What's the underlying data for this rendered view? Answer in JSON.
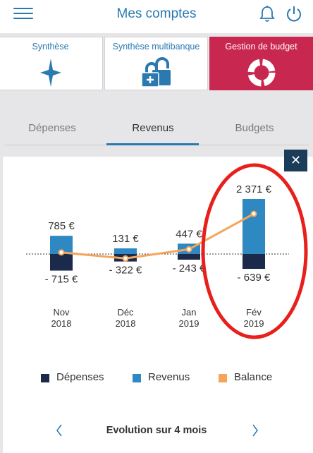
{
  "header": {
    "title": "Mes comptes",
    "menu_icon": "hamburger-menu-icon",
    "bell_icon": "bell-icon",
    "power_icon": "power-icon"
  },
  "tiles": [
    {
      "label": "Synthèse",
      "icon": "star-icon"
    },
    {
      "label": "Synthèse multibanque",
      "icon": "lock-plus-icon"
    },
    {
      "label": "Gestion de budget",
      "icon": "budget-wheel-icon"
    }
  ],
  "tabs": [
    {
      "label": "Dépenses"
    },
    {
      "label": "Revenus"
    },
    {
      "label": "Budgets"
    }
  ],
  "colors": {
    "accent": "#2a7ab0",
    "active_tile": "#c8284f",
    "depenses": "#1b2a4a",
    "revenus": "#2e88c2",
    "balance": "#f5a55a",
    "highlight": "#e8201c"
  },
  "chart_data": {
    "type": "bar",
    "categories": [
      {
        "month": "Nov",
        "year": "2018"
      },
      {
        "month": "Déc",
        "year": "2018"
      },
      {
        "month": "Jan",
        "year": "2019"
      },
      {
        "month": "Fév",
        "year": "2019"
      }
    ],
    "series": [
      {
        "name": "Dépenses",
        "values": [
          -715,
          -322,
          -243,
          -639
        ],
        "labels": [
          "- 715 €",
          "- 322 €",
          "- 243 €",
          "- 639 €"
        ]
      },
      {
        "name": "Revenus",
        "values": [
          785,
          131,
          447,
          2371
        ],
        "labels": [
          "785 €",
          "131 €",
          "447 €",
          "2 371 €"
        ]
      },
      {
        "name": "Balance",
        "values": [
          70,
          -191,
          204,
          1732
        ]
      }
    ],
    "highlighted_category": "Fév"
  },
  "legend": [
    {
      "label": "Dépenses"
    },
    {
      "label": "Revenus"
    },
    {
      "label": "Balance"
    }
  ],
  "footer": {
    "label": "Evolution sur 4 mois",
    "prev_icon": "chevron-left-icon",
    "next_icon": "chevron-right-icon"
  },
  "close_label": "✕"
}
